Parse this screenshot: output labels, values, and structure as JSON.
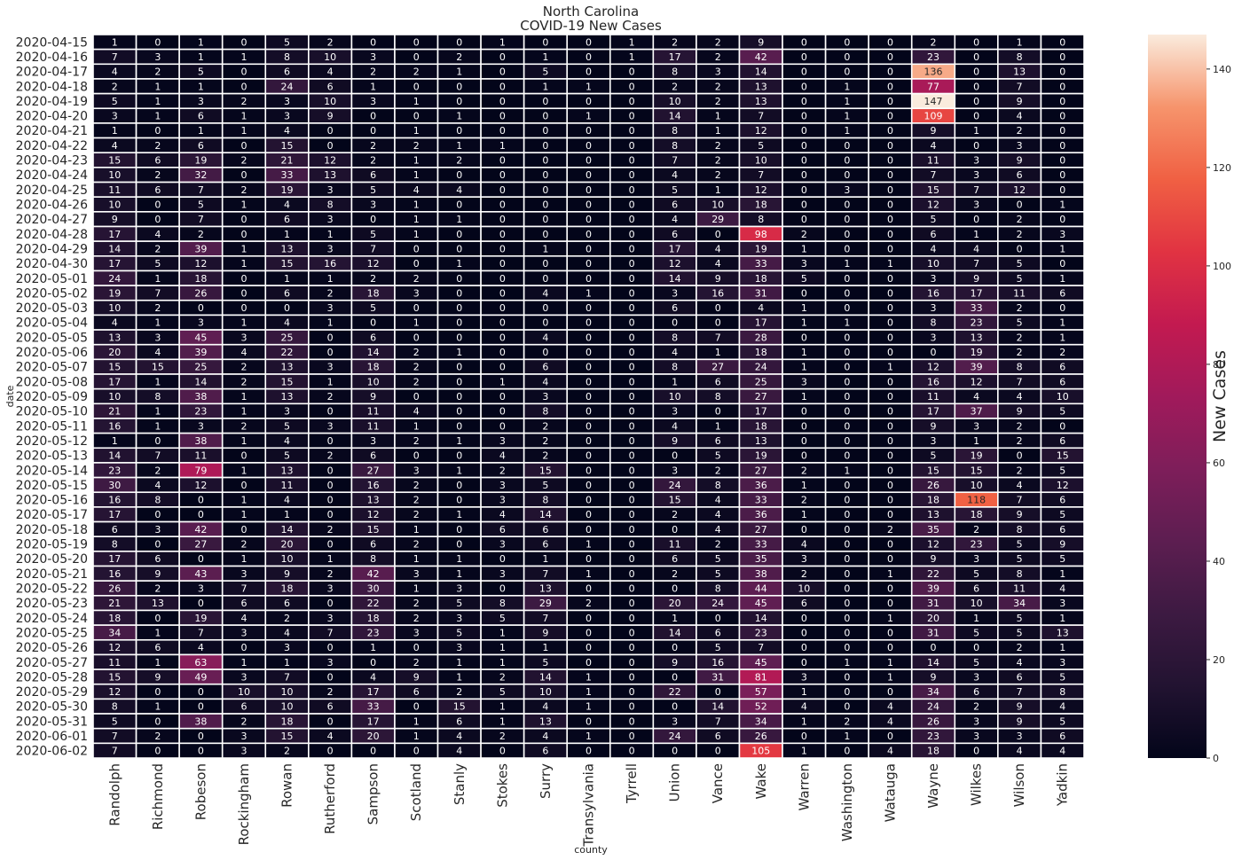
{
  "chart_data": {
    "type": "heatmap",
    "title": "North Carolina",
    "subtitle": "COVID-19 New Cases",
    "xlabel": "county",
    "ylabel": "date",
    "colorbar_label": "New Cases",
    "colorbar_ticks": [
      0,
      20,
      40,
      60,
      80,
      100,
      120,
      140
    ],
    "value_range": [
      0,
      147
    ],
    "colormap": "rocket",
    "counties": [
      "Randolph",
      "Richmond",
      "Robeson",
      "Rockingham",
      "Rowan",
      "Rutherford",
      "Sampson",
      "Scotland",
      "Stanly",
      "Stokes",
      "Surry",
      "Transylvania",
      "Tyrrell",
      "Union",
      "Vance",
      "Wake",
      "Warren",
      "Washington",
      "Watauga",
      "Wayne",
      "Wilkes",
      "Wilson",
      "Yadkin"
    ],
    "dates": [
      "2020-04-15",
      "2020-04-16",
      "2020-04-17",
      "2020-04-18",
      "2020-04-19",
      "2020-04-20",
      "2020-04-21",
      "2020-04-22",
      "2020-04-23",
      "2020-04-24",
      "2020-04-25",
      "2020-04-26",
      "2020-04-27",
      "2020-04-28",
      "2020-04-29",
      "2020-04-30",
      "2020-05-01",
      "2020-05-02",
      "2020-05-03",
      "2020-05-04",
      "2020-05-05",
      "2020-05-06",
      "2020-05-07",
      "2020-05-08",
      "2020-05-09",
      "2020-05-10",
      "2020-05-11",
      "2020-05-12",
      "2020-05-13",
      "2020-05-14",
      "2020-05-15",
      "2020-05-16",
      "2020-05-17",
      "2020-05-18",
      "2020-05-19",
      "2020-05-20",
      "2020-05-21",
      "2020-05-22",
      "2020-05-23",
      "2020-05-24",
      "2020-05-25",
      "2020-05-26",
      "2020-05-27",
      "2020-05-28",
      "2020-05-29",
      "2020-05-30",
      "2020-05-31",
      "2020-06-01",
      "2020-06-02"
    ],
    "values": [
      [
        1,
        0,
        1,
        0,
        5,
        2,
        0,
        0,
        0,
        1,
        0,
        0,
        1,
        2,
        2,
        9,
        0,
        0,
        0,
        2,
        0,
        1,
        0
      ],
      [
        7,
        3,
        1,
        1,
        8,
        10,
        3,
        0,
        2,
        0,
        1,
        0,
        1,
        17,
        2,
        42,
        0,
        0,
        0,
        23,
        0,
        8,
        0
      ],
      [
        4,
        2,
        5,
        0,
        6,
        4,
        2,
        2,
        1,
        0,
        5,
        0,
        0,
        8,
        3,
        14,
        0,
        0,
        0,
        136,
        0,
        13,
        0
      ],
      [
        2,
        1,
        1,
        0,
        24,
        6,
        1,
        0,
        0,
        0,
        1,
        1,
        0,
        2,
        2,
        13,
        0,
        1,
        0,
        77,
        0,
        7,
        0
      ],
      [
        5,
        1,
        3,
        2,
        3,
        10,
        3,
        1,
        0,
        0,
        0,
        0,
        0,
        10,
        2,
        13,
        0,
        1,
        0,
        147,
        0,
        9,
        0
      ],
      [
        3,
        1,
        6,
        1,
        3,
        9,
        0,
        0,
        1,
        0,
        0,
        1,
        0,
        14,
        1,
        7,
        0,
        1,
        0,
        109,
        0,
        4,
        0
      ],
      [
        1,
        0,
        1,
        1,
        4,
        0,
        0,
        1,
        0,
        0,
        0,
        0,
        0,
        8,
        1,
        12,
        0,
        1,
        0,
        9,
        1,
        2,
        0
      ],
      [
        4,
        2,
        6,
        0,
        15,
        0,
        2,
        2,
        1,
        1,
        0,
        0,
        0,
        8,
        2,
        5,
        0,
        0,
        0,
        4,
        0,
        3,
        0
      ],
      [
        15,
        6,
        19,
        2,
        21,
        12,
        2,
        1,
        2,
        0,
        0,
        0,
        0,
        7,
        2,
        10,
        0,
        0,
        0,
        11,
        3,
        9,
        0
      ],
      [
        10,
        2,
        32,
        0,
        33,
        13,
        6,
        1,
        0,
        0,
        0,
        0,
        0,
        4,
        2,
        7,
        0,
        0,
        0,
        7,
        3,
        6,
        0
      ],
      [
        11,
        6,
        7,
        2,
        19,
        3,
        5,
        4,
        4,
        0,
        0,
        0,
        0,
        5,
        1,
        12,
        0,
        3,
        0,
        15,
        7,
        12,
        0
      ],
      [
        10,
        0,
        5,
        1,
        4,
        8,
        3,
        1,
        0,
        0,
        0,
        0,
        0,
        6,
        10,
        18,
        0,
        0,
        0,
        12,
        3,
        0,
        1
      ],
      [
        9,
        0,
        7,
        0,
        6,
        3,
        0,
        1,
        1,
        0,
        0,
        0,
        0,
        4,
        29,
        8,
        0,
        0,
        0,
        5,
        0,
        2,
        0
      ],
      [
        17,
        4,
        2,
        0,
        1,
        1,
        5,
        1,
        0,
        0,
        0,
        0,
        0,
        6,
        0,
        98,
        2,
        0,
        0,
        6,
        1,
        2,
        3
      ],
      [
        14,
        2,
        39,
        1,
        13,
        3,
        7,
        0,
        0,
        0,
        1,
        0,
        0,
        17,
        4,
        19,
        1,
        0,
        0,
        4,
        4,
        0,
        1
      ],
      [
        17,
        5,
        12,
        1,
        15,
        16,
        12,
        0,
        1,
        0,
        0,
        0,
        0,
        12,
        4,
        33,
        3,
        1,
        1,
        10,
        7,
        5,
        0
      ],
      [
        24,
        1,
        18,
        0,
        1,
        1,
        2,
        2,
        0,
        0,
        0,
        0,
        0,
        14,
        9,
        18,
        5,
        0,
        0,
        3,
        9,
        5,
        1
      ],
      [
        19,
        7,
        26,
        0,
        6,
        2,
        18,
        3,
        0,
        0,
        4,
        1,
        0,
        3,
        16,
        31,
        0,
        0,
        0,
        16,
        17,
        11,
        6
      ],
      [
        10,
        2,
        0,
        0,
        0,
        3,
        5,
        0,
        0,
        0,
        0,
        0,
        0,
        6,
        0,
        4,
        1,
        0,
        0,
        3,
        33,
        2,
        0
      ],
      [
        4,
        1,
        3,
        1,
        4,
        1,
        0,
        1,
        0,
        0,
        0,
        0,
        0,
        0,
        0,
        17,
        1,
        1,
        0,
        8,
        23,
        5,
        1
      ],
      [
        13,
        3,
        45,
        3,
        25,
        0,
        6,
        0,
        0,
        0,
        4,
        0,
        0,
        8,
        7,
        28,
        0,
        0,
        0,
        3,
        13,
        2,
        1
      ],
      [
        20,
        4,
        39,
        4,
        22,
        0,
        14,
        2,
        1,
        0,
        0,
        0,
        0,
        4,
        1,
        18,
        1,
        0,
        0,
        0,
        19,
        2,
        2
      ],
      [
        15,
        15,
        25,
        2,
        13,
        3,
        18,
        2,
        0,
        0,
        6,
        0,
        0,
        8,
        27,
        24,
        1,
        0,
        1,
        12,
        39,
        8,
        6
      ],
      [
        17,
        1,
        14,
        2,
        15,
        1,
        10,
        2,
        0,
        1,
        4,
        0,
        0,
        1,
        6,
        25,
        3,
        0,
        0,
        16,
        12,
        7,
        6
      ],
      [
        10,
        8,
        38,
        1,
        13,
        2,
        9,
        0,
        0,
        0,
        3,
        0,
        0,
        10,
        8,
        27,
        1,
        0,
        0,
        11,
        4,
        4,
        10
      ],
      [
        21,
        1,
        23,
        1,
        3,
        0,
        11,
        4,
        0,
        0,
        8,
        0,
        0,
        3,
        0,
        17,
        0,
        0,
        0,
        17,
        37,
        9,
        5
      ],
      [
        16,
        1,
        3,
        2,
        5,
        3,
        11,
        1,
        0,
        0,
        2,
        0,
        0,
        4,
        1,
        18,
        0,
        0,
        0,
        9,
        3,
        2,
        0
      ],
      [
        1,
        0,
        38,
        1,
        4,
        0,
        3,
        2,
        1,
        3,
        2,
        0,
        0,
        9,
        6,
        13,
        0,
        0,
        0,
        3,
        1,
        2,
        6
      ],
      [
        14,
        7,
        11,
        0,
        5,
        2,
        6,
        0,
        0,
        4,
        2,
        0,
        0,
        0,
        5,
        19,
        0,
        0,
        0,
        5,
        19,
        0,
        15
      ],
      [
        23,
        2,
        79,
        1,
        13,
        0,
        27,
        3,
        1,
        2,
        15,
        0,
        0,
        3,
        2,
        27,
        2,
        1,
        0,
        15,
        15,
        2,
        5
      ],
      [
        30,
        4,
        12,
        0,
        11,
        0,
        16,
        2,
        0,
        3,
        5,
        0,
        0,
        24,
        8,
        36,
        1,
        0,
        0,
        26,
        10,
        4,
        12
      ],
      [
        16,
        8,
        0,
        1,
        4,
        0,
        13,
        2,
        0,
        3,
        8,
        0,
        0,
        15,
        4,
        33,
        2,
        0,
        0,
        18,
        118,
        7,
        6
      ],
      [
        17,
        0,
        0,
        1,
        1,
        0,
        12,
        2,
        1,
        4,
        14,
        0,
        0,
        2,
        4,
        36,
        1,
        0,
        0,
        13,
        18,
        9,
        5
      ],
      [
        6,
        3,
        42,
        0,
        14,
        2,
        15,
        1,
        0,
        6,
        6,
        0,
        0,
        0,
        4,
        27,
        0,
        0,
        2,
        35,
        2,
        8,
        6
      ],
      [
        8,
        0,
        27,
        2,
        20,
        0,
        6,
        2,
        0,
        3,
        6,
        1,
        0,
        11,
        2,
        33,
        4,
        0,
        0,
        12,
        23,
        5,
        9
      ],
      [
        17,
        6,
        0,
        1,
        10,
        1,
        8,
        1,
        1,
        0,
        1,
        0,
        0,
        6,
        5,
        35,
        3,
        0,
        0,
        9,
        3,
        5,
        5
      ],
      [
        16,
        9,
        43,
        3,
        9,
        2,
        42,
        3,
        1,
        3,
        7,
        1,
        0,
        2,
        5,
        38,
        2,
        0,
        1,
        22,
        5,
        8,
        1
      ],
      [
        26,
        2,
        3,
        7,
        18,
        3,
        30,
        1,
        3,
        0,
        13,
        0,
        0,
        0,
        8,
        44,
        10,
        0,
        0,
        39,
        6,
        11,
        4
      ],
      [
        21,
        13,
        0,
        6,
        6,
        0,
        22,
        2,
        5,
        8,
        29,
        2,
        0,
        20,
        24,
        45,
        6,
        0,
        0,
        31,
        10,
        34,
        3
      ],
      [
        18,
        0,
        19,
        4,
        2,
        3,
        18,
        2,
        3,
        5,
        7,
        0,
        0,
        1,
        0,
        14,
        0,
        0,
        1,
        20,
        1,
        5,
        1
      ],
      [
        34,
        1,
        7,
        3,
        4,
        7,
        23,
        3,
        5,
        1,
        9,
        0,
        0,
        14,
        6,
        23,
        0,
        0,
        0,
        31,
        5,
        5,
        13
      ],
      [
        12,
        6,
        4,
        0,
        3,
        0,
        1,
        0,
        3,
        1,
        1,
        0,
        0,
        0,
        5,
        7,
        0,
        0,
        0,
        0,
        0,
        2,
        1
      ],
      [
        11,
        1,
        63,
        1,
        1,
        3,
        0,
        2,
        1,
        1,
        5,
        0,
        0,
        9,
        16,
        45,
        0,
        1,
        1,
        14,
        5,
        4,
        3
      ],
      [
        15,
        9,
        49,
        3,
        7,
        0,
        4,
        9,
        1,
        2,
        14,
        1,
        0,
        0,
        31,
        81,
        3,
        0,
        1,
        9,
        3,
        6,
        5
      ],
      [
        12,
        0,
        0,
        10,
        10,
        2,
        17,
        6,
        2,
        5,
        10,
        1,
        0,
        22,
        0,
        57,
        1,
        0,
        0,
        34,
        6,
        7,
        8
      ],
      [
        8,
        1,
        0,
        6,
        10,
        6,
        33,
        0,
        15,
        1,
        4,
        1,
        0,
        0,
        14,
        52,
        4,
        0,
        4,
        24,
        2,
        9,
        4
      ],
      [
        5,
        0,
        38,
        2,
        18,
        0,
        17,
        1,
        6,
        1,
        13,
        0,
        0,
        3,
        7,
        34,
        1,
        2,
        4,
        26,
        3,
        9,
        5
      ],
      [
        7,
        2,
        0,
        3,
        15,
        4,
        20,
        1,
        4,
        2,
        4,
        1,
        0,
        24,
        6,
        26,
        0,
        1,
        0,
        23,
        3,
        3,
        6
      ],
      [
        7,
        0,
        0,
        3,
        2,
        0,
        0,
        0,
        4,
        0,
        6,
        0,
        0,
        0,
        0,
        105,
        1,
        0,
        4,
        18,
        0,
        4,
        4
      ]
    ]
  }
}
